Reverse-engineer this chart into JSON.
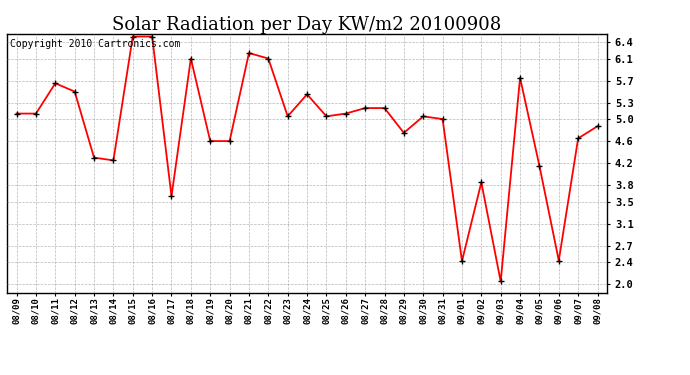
{
  "title": "Solar Radiation per Day KW/m2 20100908",
  "copyright": "Copyright 2010 Cartronics.com",
  "dates": [
    "08/09",
    "08/10",
    "08/11",
    "08/12",
    "08/13",
    "08/14",
    "08/15",
    "08/16",
    "08/17",
    "08/18",
    "08/19",
    "08/20",
    "08/21",
    "08/22",
    "08/23",
    "08/24",
    "08/25",
    "08/26",
    "08/27",
    "08/28",
    "08/29",
    "08/30",
    "08/31",
    "09/01",
    "09/02",
    "09/03",
    "09/04",
    "09/05",
    "09/06",
    "09/07",
    "09/08"
  ],
  "values": [
    5.1,
    5.1,
    5.65,
    5.5,
    4.3,
    4.25,
    6.5,
    6.5,
    3.6,
    6.1,
    4.6,
    4.6,
    6.2,
    6.1,
    5.05,
    5.45,
    5.05,
    5.1,
    5.2,
    5.2,
    4.75,
    5.05,
    5.0,
    2.42,
    3.85,
    2.05,
    5.75,
    4.15,
    2.43,
    4.65,
    4.87
  ],
  "line_color": "#ff0000",
  "background_color": "#ffffff",
  "grid_color": "#999999",
  "ylim": [
    1.85,
    6.55
  ],
  "yticks": [
    2.0,
    2.4,
    2.7,
    3.1,
    3.5,
    3.8,
    4.2,
    4.6,
    5.0,
    5.3,
    5.7,
    6.1,
    6.4
  ],
  "title_fontsize": 13,
  "copyright_fontsize": 7
}
